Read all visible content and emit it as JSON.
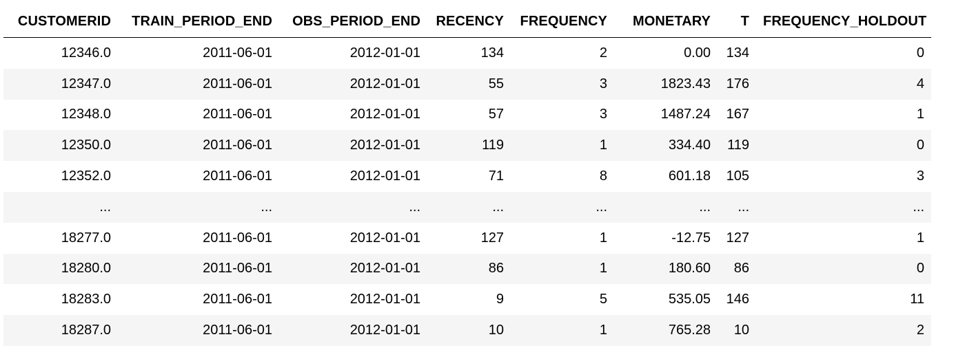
{
  "table": {
    "columns": [
      "CUSTOMERID",
      "TRAIN_PERIOD_END",
      "OBS_PERIOD_END",
      "RECENCY",
      "FREQUENCY",
      "MONETARY",
      "T",
      "FREQUENCY_HOLDOUT"
    ],
    "rows": [
      [
        "12346.0",
        "2011-06-01",
        "2012-01-01",
        "134",
        "2",
        "0.00",
        "134",
        "0"
      ],
      [
        "12347.0",
        "2011-06-01",
        "2012-01-01",
        "55",
        "3",
        "1823.43",
        "176",
        "4"
      ],
      [
        "12348.0",
        "2011-06-01",
        "2012-01-01",
        "57",
        "3",
        "1487.24",
        "167",
        "1"
      ],
      [
        "12350.0",
        "2011-06-01",
        "2012-01-01",
        "119",
        "1",
        "334.40",
        "119",
        "0"
      ],
      [
        "12352.0",
        "2011-06-01",
        "2012-01-01",
        "71",
        "8",
        "601.18",
        "105",
        "3"
      ],
      [
        "...",
        "...",
        "...",
        "...",
        "...",
        "...",
        "...",
        "..."
      ],
      [
        "18277.0",
        "2011-06-01",
        "2012-01-01",
        "127",
        "1",
        "-12.75",
        "127",
        "1"
      ],
      [
        "18280.0",
        "2011-06-01",
        "2012-01-01",
        "86",
        "1",
        "180.60",
        "86",
        "0"
      ],
      [
        "18283.0",
        "2011-06-01",
        "2012-01-01",
        "9",
        "5",
        "535.05",
        "146",
        "11"
      ],
      [
        "18287.0",
        "2011-06-01",
        "2012-01-01",
        "10",
        "1",
        "765.28",
        "10",
        "2"
      ]
    ]
  },
  "colors": {
    "stripe": "#f5f5f5",
    "background": "#ffffff",
    "text": "#000000"
  }
}
